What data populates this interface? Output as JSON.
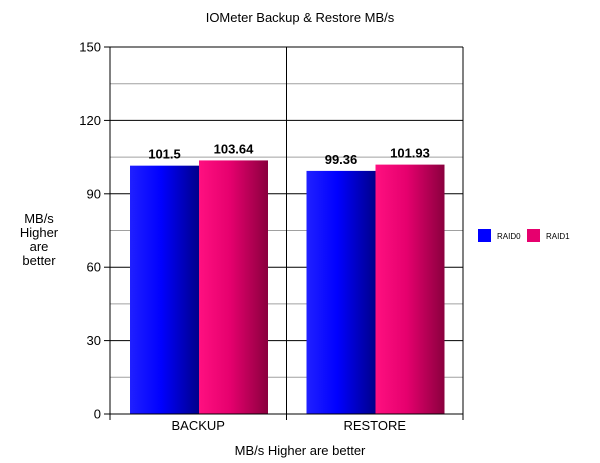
{
  "chart_data": {
    "type": "bar",
    "title": "IOMeter Backup & Restore MB/s",
    "xlabel": "MB/s Higher are better",
    "ylabel": "MB/s Higher are better",
    "ylabel_lines": [
      "MB/s",
      "Higher",
      "are",
      "better"
    ],
    "categories": [
      "BACKUP",
      "RESTORE"
    ],
    "series": [
      {
        "name": "RAID0",
        "values": [
          101.5,
          99.36
        ],
        "color": "#0000ff"
      },
      {
        "name": "RAID1",
        "values": [
          103.64,
          101.93
        ],
        "color": "#e6006e"
      }
    ],
    "data_labels": [
      [
        "101.5",
        "103.64"
      ],
      [
        "99.36",
        "101.93"
      ]
    ],
    "ylim": [
      0,
      150
    ],
    "yticks": [
      0,
      30,
      60,
      90,
      120,
      150
    ],
    "grid": true,
    "legend": "right"
  }
}
